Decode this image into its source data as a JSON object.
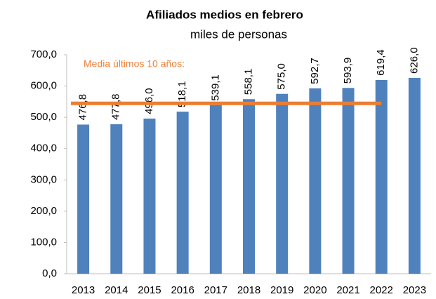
{
  "chart_data": {
    "type": "bar",
    "title": "Afiliados medios en febrero",
    "subtitle": "miles de personas",
    "categories": [
      "2013",
      "2014",
      "2015",
      "2016",
      "2017",
      "2018",
      "2019",
      "2020",
      "2021",
      "2022",
      "2023"
    ],
    "values": [
      476.8,
      477.8,
      496.0,
      518.1,
      539.1,
      558.1,
      575.0,
      592.7,
      593.9,
      619.4,
      626.0
    ],
    "value_labels": [
      "476,8",
      "477,8",
      "496,0",
      "518,1",
      "539,1",
      "558,1",
      "575,0",
      "592,7",
      "593,9",
      "619,4",
      "626,0"
    ],
    "color": "#4f81bd",
    "ylim": [
      0,
      700
    ],
    "yticks": [
      {
        "value": 0,
        "label": "0,0"
      },
      {
        "value": 100,
        "label": "100,0"
      },
      {
        "value": 200,
        "label": "200,0"
      },
      {
        "value": 300,
        "label": "300,0"
      },
      {
        "value": 400,
        "label": "400,0"
      },
      {
        "value": 500,
        "label": "500,0"
      },
      {
        "value": 600,
        "label": "600,0"
      },
      {
        "value": 700,
        "label": "700,0"
      }
    ],
    "reference_line": {
      "value": 544.7,
      "label": "Media últimos 10 años:",
      "color": "#ed7d31"
    },
    "grid": false
  }
}
